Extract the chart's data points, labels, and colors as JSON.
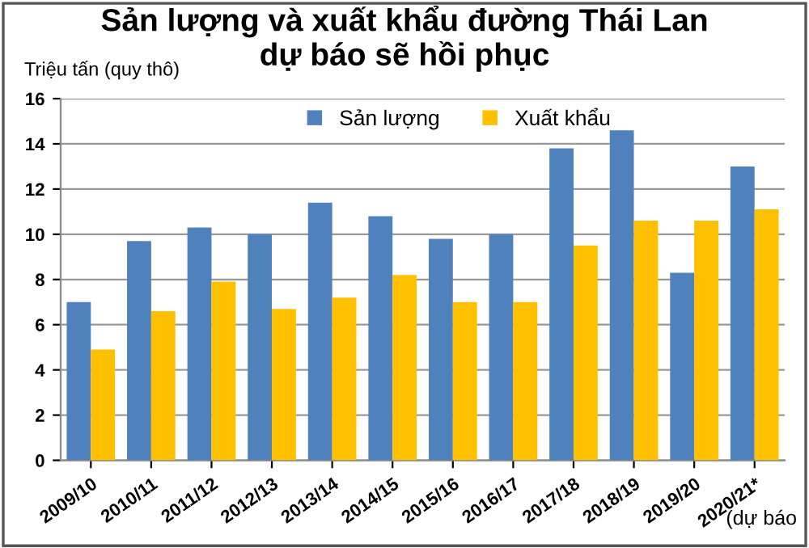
{
  "chart_data": {
    "type": "bar",
    "title": "Sản lượng và xuất khẩu đường Thái Lan\ndự báo sẽ hồi phục",
    "ylabel": "Triệu tấn (quy thô)",
    "categories": [
      "2009/10",
      "2010/11",
      "2011/12",
      "2012/13",
      "2013/14",
      "2014/15",
      "2015/16",
      "2016/17",
      "2017/18",
      "2018/19",
      "2019/20",
      "2020/21*"
    ],
    "series": [
      {
        "name": "Sản lượng",
        "color": "#4f81bd",
        "values": [
          7.0,
          9.7,
          10.3,
          10.0,
          11.4,
          10.8,
          9.8,
          10.0,
          13.8,
          14.6,
          8.3,
          13.0
        ]
      },
      {
        "name": "Xuất khẩu",
        "color": "#ffc000",
        "values": [
          4.9,
          6.6,
          7.9,
          6.7,
          7.2,
          8.2,
          7.0,
          7.0,
          9.5,
          10.6,
          10.6,
          11.1
        ]
      }
    ],
    "ylim": [
      0,
      16
    ],
    "yticks": [
      0,
      2,
      4,
      6,
      8,
      10,
      12,
      14,
      16
    ],
    "grid": "y",
    "legend": "top right",
    "annotations": [
      "(dự báo"
    ]
  }
}
